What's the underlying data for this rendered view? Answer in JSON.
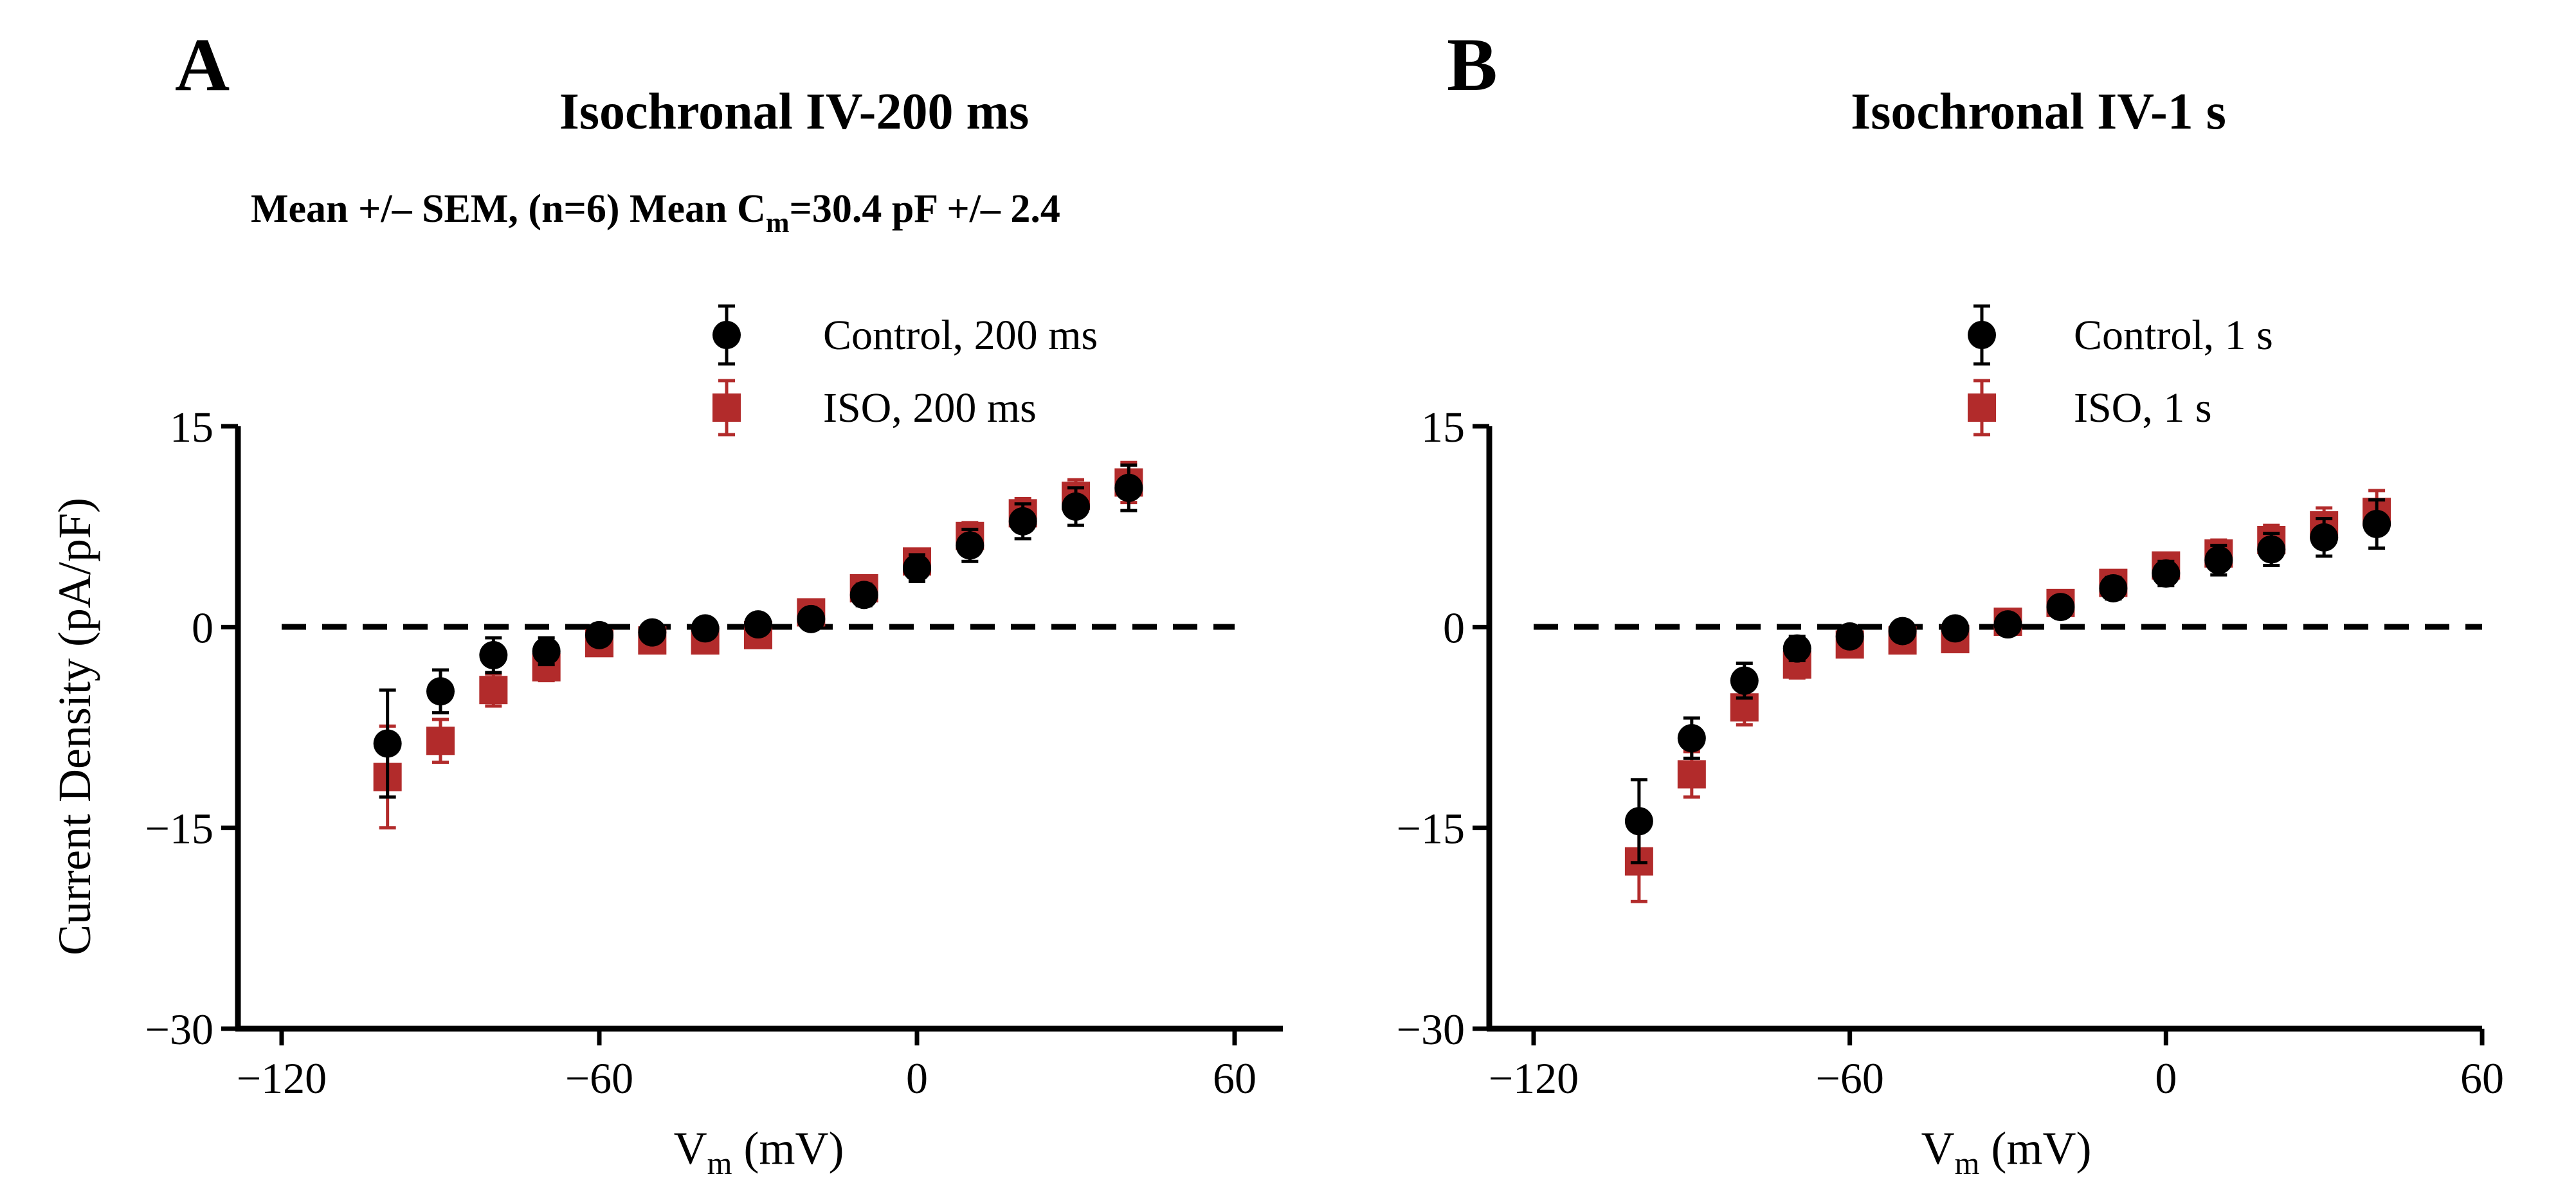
{
  "figure": {
    "panel_a_letter": "A",
    "panel_b_letter": "B",
    "subtitle_part1": "Mean +/– SEM, (n=6)   Mean C",
    "subtitle_sub": "m",
    "subtitle_part2": "=30.4 pF +/– 2.4"
  },
  "colors": {
    "control": "#000000",
    "iso": "#b22b2b",
    "axis": "#000000"
  },
  "chart_data": [
    {
      "type": "scatter",
      "panel": "A",
      "title": "Isochronal IV-200 ms",
      "xlabel_main": "V",
      "xlabel_sub": "m",
      "xlabel_rest": " (mV)",
      "ylabel": "Current Density (pA/pF)",
      "xlim": [
        -130,
        60
      ],
      "ylim": [
        -30,
        15
      ],
      "xticks": [
        -120,
        -60,
        0,
        60
      ],
      "yticks": [
        15,
        0,
        -15,
        -30
      ],
      "xtick_labels": [
        "−120",
        "−60",
        "0",
        "60"
      ],
      "ytick_labels": [
        "15",
        "0",
        "−15",
        "−30"
      ],
      "reference_line_y": 0,
      "legend_position": "top",
      "series": [
        {
          "name": "Control, 200 ms",
          "marker": "circle",
          "x": [
            -100,
            -90,
            -80,
            -70,
            -60,
            -50,
            -40,
            -30,
            -20,
            -10,
            0,
            10,
            20,
            30,
            40
          ],
          "y": [
            -8.7,
            -4.8,
            -2.1,
            -1.8,
            -0.6,
            -0.4,
            -0.1,
            0.2,
            0.6,
            2.4,
            4.4,
            6.1,
            7.9,
            9.0,
            10.4
          ],
          "err": [
            4.0,
            1.6,
            1.3,
            1.0,
            0.5,
            0.4,
            0.3,
            0.3,
            0.4,
            0.8,
            1.0,
            1.2,
            1.3,
            1.4,
            1.7
          ]
        },
        {
          "name": "ISO, 200 ms",
          "marker": "square",
          "x": [
            -100,
            -90,
            -80,
            -70,
            -60,
            -50,
            -40,
            -30,
            -20,
            -10,
            0,
            10,
            20,
            30,
            40
          ],
          "y": [
            -11.2,
            -8.5,
            -4.7,
            -3.0,
            -1.2,
            -1.0,
            -1.0,
            -0.6,
            1.1,
            2.9,
            4.9,
            6.8,
            8.5,
            9.8,
            10.8
          ],
          "err": [
            3.8,
            1.6,
            1.2,
            1.0,
            0.6,
            0.5,
            0.5,
            0.5,
            0.5,
            0.7,
            0.8,
            1.0,
            1.1,
            1.2,
            1.5
          ]
        }
      ]
    },
    {
      "type": "scatter",
      "panel": "B",
      "title": "Isochronal IV-1 s",
      "xlabel_main": "V",
      "xlabel_sub": "m",
      "xlabel_rest": " (mV)",
      "ylabel": "",
      "xlim": [
        -130,
        60
      ],
      "ylim": [
        -30,
        15
      ],
      "xticks": [
        -120,
        -60,
        0,
        60
      ],
      "yticks": [
        15,
        0,
        -15,
        -30
      ],
      "xtick_labels": [
        "−120",
        "−60",
        "0",
        "60"
      ],
      "ytick_labels": [
        "15",
        "0",
        "−15",
        "−30"
      ],
      "reference_line_y": 0,
      "legend_position": "top",
      "series": [
        {
          "name": "Control, 1 s",
          "marker": "circle",
          "x": [
            -100,
            -90,
            -80,
            -70,
            -60,
            -50,
            -40,
            -30,
            -20,
            -10,
            0,
            10,
            20,
            30,
            40
          ],
          "y": [
            -14.5,
            -8.3,
            -4.0,
            -1.6,
            -0.7,
            -0.3,
            -0.1,
            0.2,
            1.5,
            2.9,
            4.0,
            5.0,
            5.8,
            6.7,
            7.7
          ],
          "err": [
            3.1,
            1.5,
            1.3,
            0.9,
            0.5,
            0.4,
            0.3,
            0.3,
            0.5,
            0.8,
            0.9,
            1.1,
            1.2,
            1.4,
            1.8
          ]
        },
        {
          "name": "ISO, 1 s",
          "marker": "square",
          "x": [
            -100,
            -90,
            -80,
            -70,
            -60,
            -50,
            -40,
            -30,
            -20,
            -10,
            0,
            10,
            20,
            30,
            40
          ],
          "y": [
            -17.5,
            -11.0,
            -6.0,
            -2.8,
            -1.3,
            -1.0,
            -0.9,
            0.4,
            1.8,
            3.3,
            4.6,
            5.5,
            6.5,
            7.6,
            8.6
          ],
          "err": [
            3.0,
            1.7,
            1.3,
            1.0,
            0.6,
            0.5,
            0.5,
            0.4,
            0.5,
            0.7,
            0.8,
            1.0,
            1.1,
            1.3,
            1.6
          ]
        }
      ]
    }
  ]
}
